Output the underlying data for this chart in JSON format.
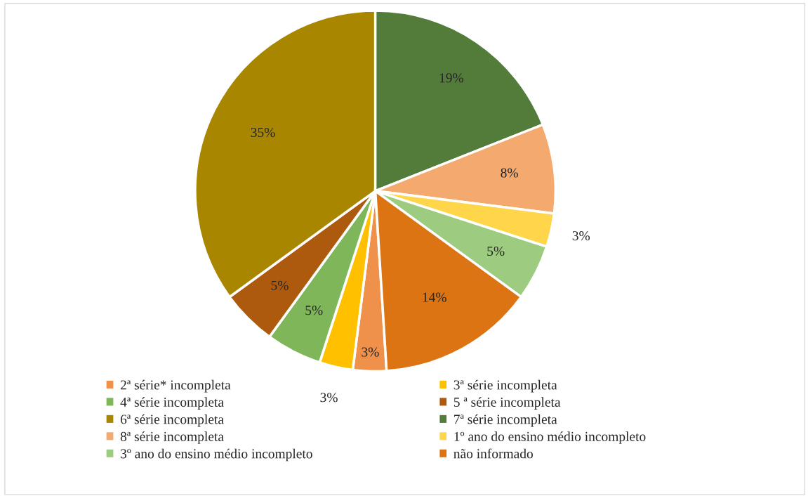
{
  "chart_data": {
    "type": "pie",
    "categories": [
      "2ª série* incompleta",
      "3ª série incompleta",
      "4ª série incompleta",
      "5 ª série incompleta",
      "6ª série incompleta",
      "7ª série incompleta",
      "8ª série incompleta",
      "1º ano do ensino médio incompleto",
      "3º ano do ensino médio incompleto",
      "não informado"
    ],
    "values": [
      3,
      3,
      5,
      5,
      35,
      19,
      8,
      3,
      5,
      14
    ],
    "colors": [
      "#f0914b",
      "#ffc000",
      "#7fb65a",
      "#ae5a0e",
      "#a98600",
      "#537b3a",
      "#f4a96e",
      "#ffd54a",
      "#9dcb7f",
      "#dc7414"
    ],
    "value_labels": [
      "3%",
      "3%",
      "5%",
      "5%",
      "35%",
      "19%",
      "8%",
      "3%",
      "5%",
      "14%"
    ],
    "legend": "bottom"
  }
}
